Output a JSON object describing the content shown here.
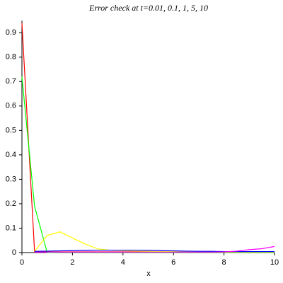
{
  "chart_data": {
    "type": "line",
    "title": "Error check at t=0.01, 0.1, 1, 5, 10",
    "x_label": "x",
    "x": [
      0,
      0.5,
      1,
      1.5,
      2,
      2.5,
      3,
      3.5,
      4,
      4.5,
      5,
      5.5,
      6,
      6.5,
      7,
      7.5,
      8,
      8.5,
      9,
      9.5,
      10
    ],
    "series": [
      {
        "color": "#ff0000",
        "values": [
          0.94,
          0.005,
          0.003,
          0.003,
          0.003,
          0.003,
          0.003,
          0.003,
          0.003,
          0.003,
          0.003,
          0.003,
          0.003,
          0.003,
          0.003,
          0.003,
          0.003,
          0.003,
          0.003,
          0.003,
          0.003
        ]
      },
      {
        "color": "#00ff00",
        "values": [
          0.72,
          0.19,
          0.0,
          0.001,
          0.001,
          0.001,
          0.001,
          0.001,
          0.001,
          0.001,
          0.001,
          0.001,
          0.001,
          0.001,
          0.001,
          0.001,
          0.001,
          0.001,
          0.001,
          0.001,
          0.001
        ]
      },
      {
        "color": "#ffff00",
        "values": [
          null,
          0.005,
          0.07,
          0.085,
          0.06,
          0.035,
          0.015,
          0.01,
          0.008,
          0.006,
          0.005,
          0.004,
          0.004,
          0.003,
          0.003,
          0.003,
          0.002,
          0.002,
          0.002,
          0.002,
          0.002
        ]
      },
      {
        "color": "#0000ff",
        "values": [
          null,
          0.005,
          0.006,
          0.007,
          0.008,
          0.009,
          0.01,
          0.01,
          0.01,
          0.01,
          0.009,
          0.008,
          0.007,
          0.006,
          0.005,
          0.005,
          0.004,
          0.004,
          0.004,
          0.004,
          0.004
        ]
      },
      {
        "color": "#ff00ff",
        "values": [
          null,
          0.002,
          0.002,
          0.002,
          0.002,
          0.002,
          0.002,
          0.002,
          0.002,
          0.002,
          0.002,
          0.002,
          0.002,
          0.002,
          0.002,
          0.002,
          0.003,
          0.006,
          0.012,
          0.016,
          0.025
        ]
      }
    ],
    "xlim": [
      0,
      10
    ],
    "xticks": [
      0,
      2,
      4,
      6,
      8,
      10
    ],
    "ylim": [
      0,
      0.95
    ],
    "yticks": [
      0,
      0.1,
      0.2,
      0.3,
      0.4,
      0.5,
      0.6,
      0.7,
      0.8,
      0.9
    ]
  }
}
